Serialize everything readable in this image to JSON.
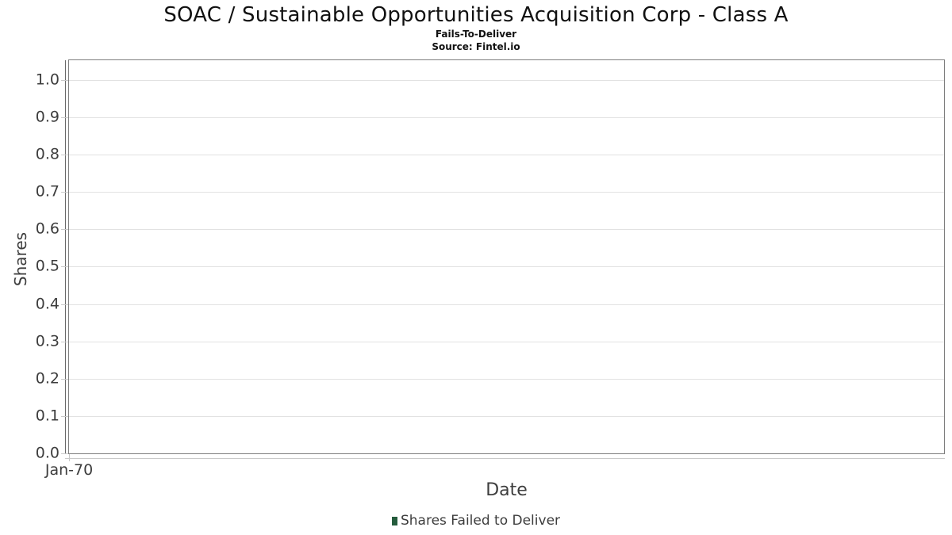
{
  "header": {
    "title": "SOAC / Sustainable Opportunities Acquisition Corp - Class A",
    "subtitle": "Fails-To-Deliver",
    "source": "Source: Fintel.io"
  },
  "chart_data": {
    "type": "bar",
    "title": "SOAC / Sustainable Opportunities Acquisition Corp - Class A",
    "subtitle": "Fails-To-Deliver",
    "source_note": "Source: Fintel.io",
    "xlabel": "Date",
    "ylabel": "Shares",
    "categories": [],
    "series": [
      {
        "name": "Shares Failed to Deliver",
        "color": "#255c3d",
        "values": []
      }
    ],
    "ylim": [
      0,
      1.053
    ],
    "yticks": [
      "0.0",
      "0.1",
      "0.2",
      "0.3",
      "0.4",
      "0.5",
      "0.6",
      "0.7",
      "0.8",
      "0.9",
      "1.0"
    ],
    "xticks": [
      "Jan-70"
    ],
    "grid": "horizontal",
    "legend_position": "bottom",
    "plot_is_empty": true
  },
  "legend": {
    "items": [
      {
        "label": "Shares Failed to Deliver",
        "color": "#255c3d"
      }
    ]
  },
  "colors": {
    "background": "#ffffff",
    "title_text": "#111111",
    "axis_text": "#3d3d3d",
    "plot_border": "#7d7d7d",
    "gridline": "#e2e2e2",
    "tick_mark": "#c9c9c9",
    "y_axis_line": "#6b6b6b",
    "legend_marker": "#255c3d"
  }
}
